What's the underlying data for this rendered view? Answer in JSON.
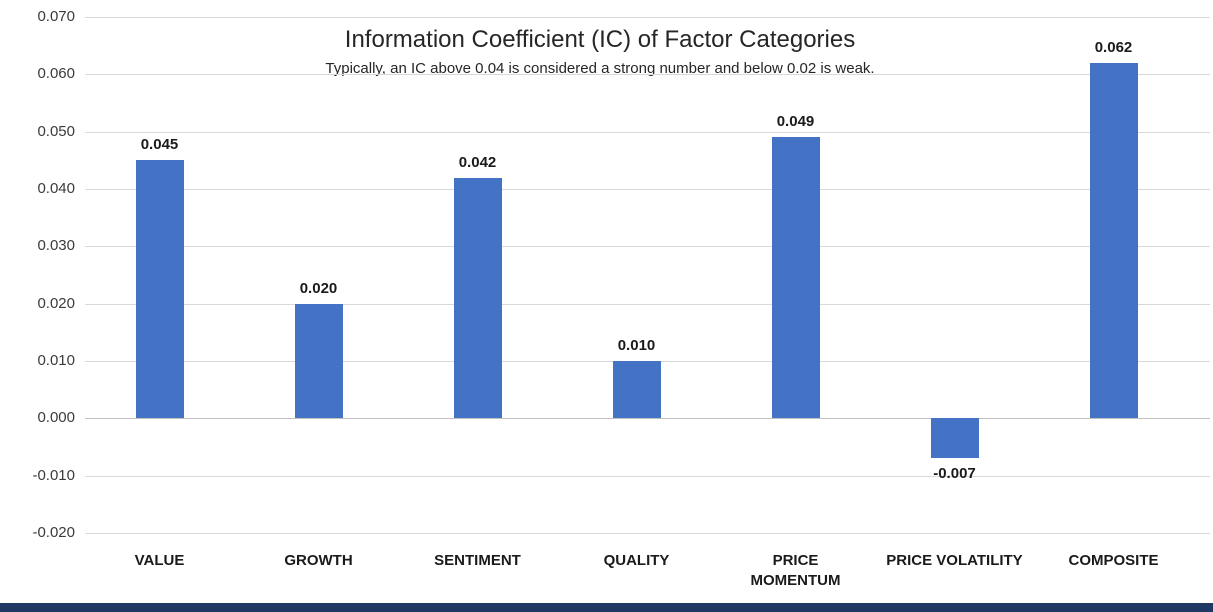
{
  "page": {
    "background": "#FFFFFF",
    "bottom_bar_color": "#203864"
  },
  "chart_data": {
    "type": "bar",
    "title": "Information Coefficient (IC) of Factor Categories",
    "subtitle": "Typically, an IC above 0.04 is considered a strong number and below 0.02 is weak.",
    "categories": [
      "VALUE",
      "GROWTH",
      "SENTIMENT",
      "QUALITY",
      "PRICE\nMOMENTUM",
      "PRICE VOLATILITY",
      "COMPOSITE"
    ],
    "values": [
      0.045,
      0.02,
      0.042,
      0.01,
      0.049,
      -0.007,
      0.062
    ],
    "value_labels": [
      "0.045",
      "0.020",
      "0.042",
      "0.010",
      "0.049",
      "-0.007",
      "0.062"
    ],
    "xlabel": "",
    "ylabel": "",
    "ylim": [
      -0.02,
      0.07
    ],
    "ytick_step": 0.01,
    "ytick_labels": [
      "0.070",
      "0.060",
      "0.050",
      "0.040",
      "0.030",
      "0.020",
      "0.010",
      "0.000",
      "-0.010",
      "-0.020"
    ],
    "grid": true,
    "legend": "none",
    "bar_color": "#4472C4",
    "gridline_color": "#D9D9D9",
    "axis_line_color": "#BFBFBF"
  }
}
